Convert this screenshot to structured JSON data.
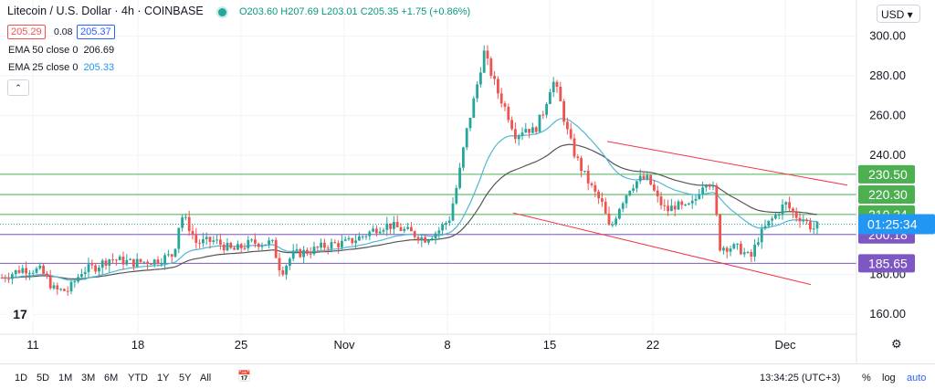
{
  "header": {
    "title": "Litecoin / U.S. Dollar · 4h · COINBASE",
    "ohlc_text": "O203.60 H207.69 L203.01 C205.35 +1.75 (+0.86%)",
    "bid": "205.29",
    "spread": "0.08",
    "ask": "205.37",
    "ema50_label": "EMA 50 close 0",
    "ema50_value": "206.69",
    "ema25_label": "EMA 25 close 0",
    "ema25_value": "205.33",
    "collapse_icon": "chevron-up-icon"
  },
  "currency_button": "USD ▾",
  "toolbar": {
    "ranges": [
      "1D",
      "5D",
      "1M",
      "3M",
      "6M",
      "YTD",
      "1Y",
      "5Y",
      "All"
    ],
    "time": "13:34:25 (UTC+3)",
    "percent": "%",
    "log": "log",
    "auto": "auto"
  },
  "colors": {
    "up": "#26a69a",
    "down": "#ef5350",
    "ema25": "#4fb8d6",
    "ema50": "#555555",
    "green_level": "#4caf50",
    "purple_level": "#7e57c2",
    "channel": "#f23645",
    "countdown_bg": "#2196f3"
  },
  "chart_data": {
    "type": "candlestick",
    "symbol": "LTCUSD",
    "interval": "4h",
    "y_axis": {
      "ticks": [
        160,
        180,
        200,
        220,
        240,
        260,
        280,
        300
      ],
      "range": [
        150,
        309
      ]
    },
    "x_axis": {
      "labels": [
        "11",
        "18",
        "25",
        "Nov",
        "8",
        "15",
        "22",
        "Dec"
      ]
    },
    "horizontal_levels": [
      {
        "value": 230.5,
        "label": "230.50",
        "color": "#4caf50"
      },
      {
        "value": 220.3,
        "label": "220.30",
        "color": "#4caf50"
      },
      {
        "value": 210.24,
        "label": "210.24",
        "color": "#4caf50"
      },
      {
        "value": 200.18,
        "label": "200.18",
        "color": "#7e57c2"
      },
      {
        "value": 185.65,
        "label": "185.65",
        "color": "#7e57c2"
      }
    ],
    "last_price": 205.35,
    "countdown": "01:25:34",
    "trend_channel": [
      {
        "from": [
          "Nov 15",
          247
        ],
        "to": [
          "Dec 4",
          211
        ]
      },
      {
        "from": [
          "Nov 11",
          211
        ],
        "to": [
          "Dec 3",
          175
        ]
      }
    ],
    "price_path": [
      [
        0,
        178
      ],
      [
        25,
        183
      ],
      [
        45,
        182
      ],
      [
        60,
        172
      ],
      [
        75,
        172
      ],
      [
        90,
        182
      ],
      [
        105,
        184
      ],
      [
        120,
        188
      ],
      [
        145,
        186
      ],
      [
        170,
        187
      ],
      [
        190,
        190
      ],
      [
        198,
        210
      ],
      [
        205,
        206
      ],
      [
        215,
        196
      ],
      [
        235,
        197
      ],
      [
        255,
        192
      ],
      [
        275,
        196
      ],
      [
        298,
        196
      ],
      [
        308,
        181
      ],
      [
        320,
        190
      ],
      [
        340,
        192
      ],
      [
        360,
        195
      ],
      [
        380,
        196
      ],
      [
        400,
        200
      ],
      [
        415,
        204
      ],
      [
        425,
        205
      ],
      [
        445,
        202
      ],
      [
        465,
        198
      ],
      [
        480,
        202
      ],
      [
        492,
        208
      ],
      [
        502,
        228
      ],
      [
        510,
        250
      ],
      [
        520,
        270
      ],
      [
        530,
        292
      ],
      [
        535,
        285
      ],
      [
        545,
        272
      ],
      [
        555,
        262
      ],
      [
        565,
        250
      ],
      [
        575,
        254
      ],
      [
        585,
        252
      ],
      [
        595,
        262
      ],
      [
        605,
        278
      ],
      [
        612,
        270
      ],
      [
        620,
        254
      ],
      [
        628,
        242
      ],
      [
        638,
        232
      ],
      [
        650,
        222
      ],
      [
        660,
        215
      ],
      [
        668,
        202
      ],
      [
        678,
        214
      ],
      [
        690,
        224
      ],
      [
        700,
        228
      ],
      [
        710,
        228
      ],
      [
        720,
        218
      ],
      [
        730,
        212
      ],
      [
        740,
        215
      ],
      [
        750,
        213
      ],
      [
        760,
        216
      ],
      [
        768,
        225
      ],
      [
        775,
        228
      ],
      [
        782,
        222
      ],
      [
        788,
        194
      ],
      [
        798,
        194
      ],
      [
        810,
        193
      ],
      [
        822,
        188
      ],
      [
        830,
        198
      ],
      [
        840,
        205
      ],
      [
        850,
        210
      ],
      [
        860,
        216
      ],
      [
        870,
        210
      ],
      [
        880,
        208
      ],
      [
        890,
        203
      ],
      [
        898,
        205.35
      ]
    ]
  }
}
